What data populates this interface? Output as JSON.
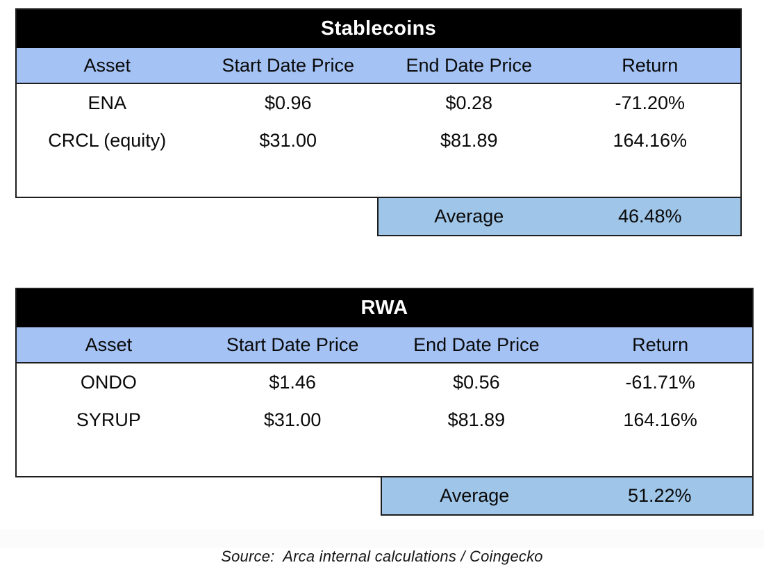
{
  "page": {
    "source_note": "Source:  Arca internal calculations / Coingecko"
  },
  "colors": {
    "title_bg": "#000000",
    "title_text": "#ffffff",
    "header_bg": "#a4c2f4",
    "average_bg": "#9fc5e8",
    "border": "#1d1d1d",
    "text": "#0a0a0a"
  },
  "chart_data": [
    {
      "type": "table",
      "title": "Stablecoins",
      "columns": [
        "Asset",
        "Start Date Price",
        "End Date Price",
        "Return"
      ],
      "rows": [
        [
          "ENA",
          "$0.96",
          "$0.28",
          "-71.20%"
        ],
        [
          "CRCL (equity)",
          "$31.00",
          "$81.89",
          "164.16%"
        ]
      ],
      "summary": {
        "label": "Average",
        "value": "46.48%"
      }
    },
    {
      "type": "table",
      "title": "RWA",
      "columns": [
        "Asset",
        "Start Date Price",
        "End Date Price",
        "Return"
      ],
      "rows": [
        [
          "ONDO",
          "$1.46",
          "$0.56",
          "-61.71%"
        ],
        [
          "SYRUP",
          "$31.00",
          "$81.89",
          "164.16%"
        ]
      ],
      "summary": {
        "label": "Average",
        "value": "51.22%"
      }
    }
  ]
}
